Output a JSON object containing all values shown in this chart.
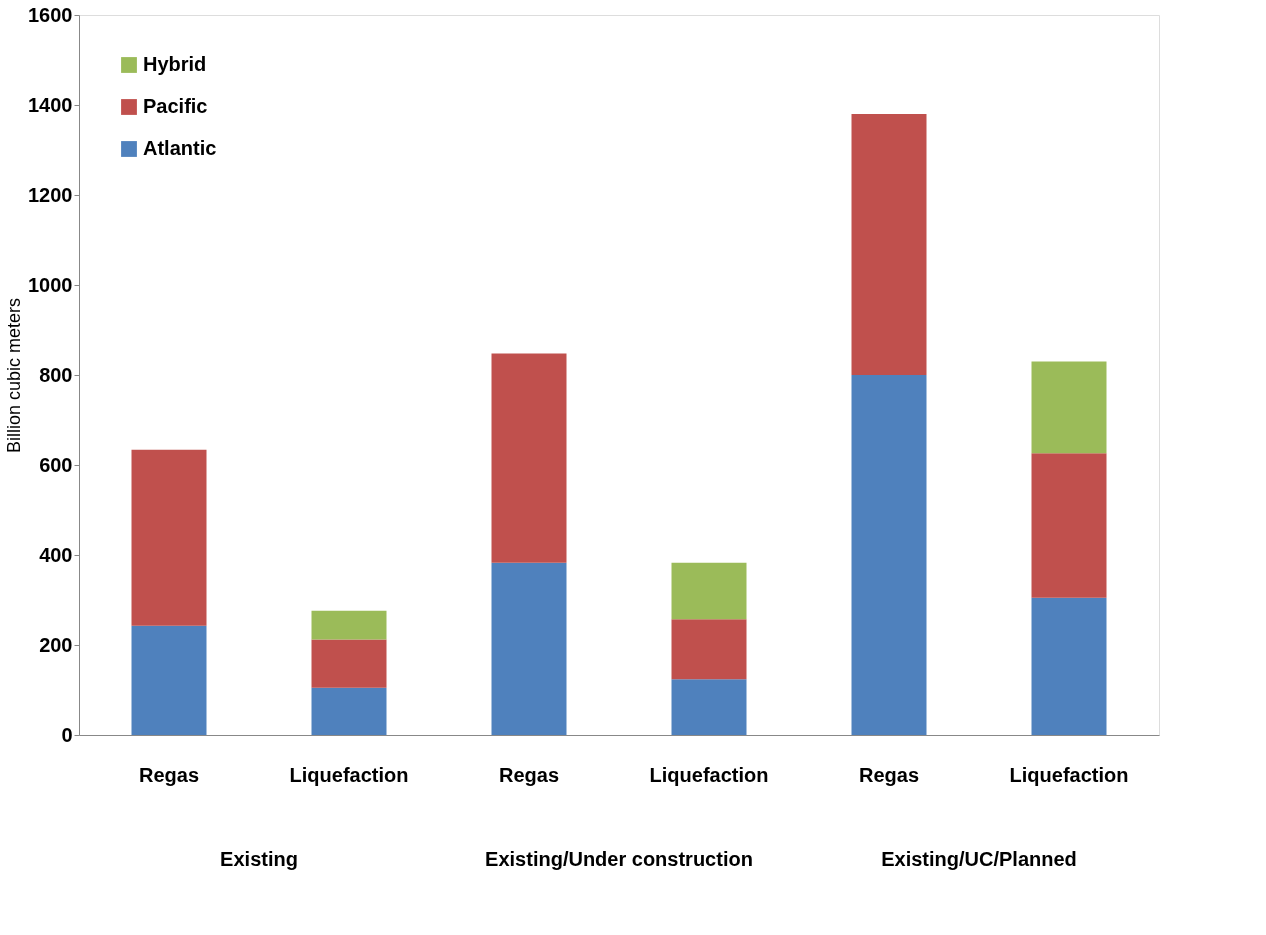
{
  "chart_data": {
    "type": "bar",
    "stacked": true,
    "ylabel": "Billion cubic meters",
    "categories": [
      "Regas",
      "Liquefaction",
      "Regas",
      "Liquefaction",
      "Regas",
      "Liquefaction"
    ],
    "series": [
      {
        "name": "Atlantic",
        "color": "#4f81bd",
        "values": [
          243,
          105,
          383,
          124,
          800,
          305
        ]
      },
      {
        "name": "Pacific",
        "color": "#c0504d",
        "values": [
          391,
          107,
          465,
          133,
          580,
          321
        ]
      },
      {
        "name": "Hybrid",
        "color": "#9bbb59",
        "values": [
          null,
          64,
          null,
          126,
          null,
          204
        ]
      }
    ],
    "ylim": [
      0,
      1600
    ],
    "yticks": [
      0,
      200,
      400,
      600,
      800,
      1000,
      1200,
      1400,
      1600
    ],
    "grid": false,
    "legend": "top left",
    "annotations": [
      "Existing",
      "Existing/Under construction",
      "Existing/UC/Planned"
    ]
  }
}
